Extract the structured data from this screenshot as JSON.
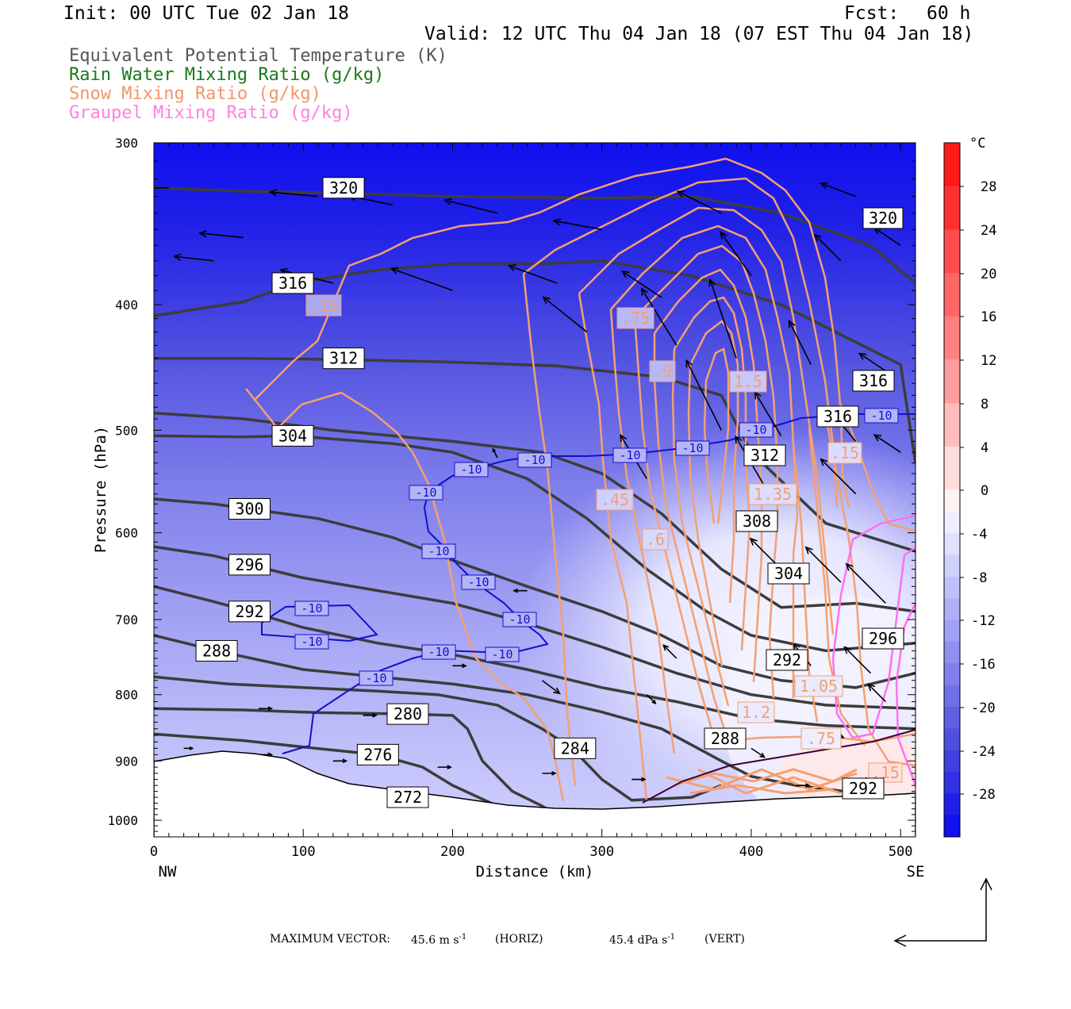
{
  "header": {
    "init": "Init: 00 UTC Tue 02 Jan 18",
    "fcst_label": "Fcst:",
    "fcst_value": "60 h",
    "valid": "Valid: 12 UTC Thu 04 Jan 18 (07 EST Thu 04 Jan 18)"
  },
  "legend": [
    {
      "label": "Equivalent Potential Temperature (K)",
      "color": "#555555"
    },
    {
      "label": "Rain Water Mixing Ratio (g/kg)",
      "color": "#1a7a1a"
    },
    {
      "label": "Snow Mixing Ratio (g/kg)",
      "color": "#f0966a"
    },
    {
      "label": "Graupel Mixing Ratio (g/kg)",
      "color": "#ff80e0"
    }
  ],
  "colors": {
    "theta_e": "#3c3c3c",
    "snow": "#f4a070",
    "graupel": "#ff70f0",
    "isotherm": "#1010d0",
    "vector": "#000000"
  },
  "chart_data": {
    "type": "contour",
    "x_axis": {
      "label": "Distance (km)",
      "range": [
        0,
        510
      ],
      "ticks": [
        "0",
        "100",
        "200",
        "300",
        "400",
        "500"
      ],
      "ends": [
        "NW",
        "SE"
      ]
    },
    "y_axis": {
      "label": "Pressure (hPa)",
      "range": [
        300,
        1030
      ],
      "log_scale": true,
      "ticks": [
        "300",
        "400",
        "500",
        "600",
        "700",
        "800",
        "900",
        "1000"
      ]
    },
    "colorbar": {
      "unit": "°C",
      "ticks": [
        "28",
        "24",
        "20",
        "16",
        "12",
        "8",
        "4",
        "0",
        "-4",
        "-8",
        "-12",
        "-16",
        "-20",
        "-24",
        "-28"
      ],
      "bins": [
        {
          "lo": 28,
          "hi": 32,
          "color": "#ff1a1a"
        },
        {
          "lo": 24,
          "hi": 28,
          "color": "#ff3030"
        },
        {
          "lo": 20,
          "hi": 24,
          "color": "#ff4c4c"
        },
        {
          "lo": 16,
          "hi": 20,
          "color": "#ff6666"
        },
        {
          "lo": 12,
          "hi": 16,
          "color": "#ff8080"
        },
        {
          "lo": 8,
          "hi": 12,
          "color": "#ff9c9c"
        },
        {
          "lo": 4,
          "hi": 8,
          "color": "#ffbcbc"
        },
        {
          "lo": 0,
          "hi": 4,
          "color": "#ffdcdc"
        },
        {
          "lo": -2,
          "hi": 0,
          "color": "#fff2f2"
        },
        {
          "lo": -4,
          "hi": -2,
          "color": "#eeeeff"
        },
        {
          "lo": -6,
          "hi": -4,
          "color": "#e0e0ff"
        },
        {
          "lo": -8,
          "hi": -6,
          "color": "#d0d0fd"
        },
        {
          "lo": -10,
          "hi": -8,
          "color": "#c0c0fb"
        },
        {
          "lo": -12,
          "hi": -10,
          "color": "#b0b0f8"
        },
        {
          "lo": -14,
          "hi": -12,
          "color": "#a0a0f4"
        },
        {
          "lo": -16,
          "hi": -14,
          "color": "#9090f0"
        },
        {
          "lo": -18,
          "hi": -16,
          "color": "#8080ec"
        },
        {
          "lo": -20,
          "hi": -18,
          "color": "#7070e8"
        },
        {
          "lo": -22,
          "hi": -20,
          "color": "#6060e4"
        },
        {
          "lo": -24,
          "hi": -22,
          "color": "#5050e0"
        },
        {
          "lo": -26,
          "hi": -24,
          "color": "#4040e0"
        },
        {
          "lo": -28,
          "hi": -26,
          "color": "#3030e4"
        },
        {
          "lo": -30,
          "hi": -28,
          "color": "#2020e8"
        },
        {
          "lo": -32,
          "hi": -30,
          "color": "#1010f0"
        }
      ]
    },
    "theta_e_contours": [
      {
        "label": "320",
        "points": [
          [
            0,
            325
          ],
          [
            60,
            327
          ],
          [
            120,
            328
          ],
          [
            200,
            330
          ],
          [
            300,
            331
          ],
          [
            360,
            330
          ],
          [
            420,
            340
          ],
          [
            480,
            360
          ],
          [
            510,
            385
          ]
        ],
        "label_at": [
          127,
          325
        ]
      },
      {
        "label": "316",
        "points": [
          [
            0,
            408
          ],
          [
            60,
            398
          ],
          [
            95,
            385
          ],
          [
            150,
            376
          ],
          [
            200,
            372
          ],
          [
            260,
            372
          ],
          [
            300,
            370
          ],
          [
            360,
            380
          ],
          [
            420,
            400
          ],
          [
            500,
            445
          ],
          [
            510,
            530
          ]
        ],
        "label_at": [
          93,
          385
        ]
      },
      {
        "label": "312",
        "points": [
          [
            0,
            440
          ],
          [
            60,
            440
          ],
          [
            127,
            441
          ],
          [
            200,
            443
          ],
          [
            270,
            446
          ],
          [
            340,
            455
          ],
          [
            380,
            470
          ],
          [
            400,
            520
          ],
          [
            450,
            590
          ],
          [
            510,
            620
          ]
        ],
        "label_at": [
          127,
          440
        ]
      },
      {
        "label": "308",
        "points": [
          [
            0,
            485
          ],
          [
            60,
            490
          ],
          [
            120,
            500
          ],
          [
            200,
            510
          ],
          [
            260,
            520
          ],
          [
            300,
            540
          ],
          [
            340,
            580
          ],
          [
            380,
            640
          ],
          [
            420,
            685
          ],
          [
            470,
            680
          ],
          [
            510,
            690
          ]
        ],
        "label_at": null
      },
      {
        "label": "304",
        "points": [
          [
            0,
            505
          ],
          [
            60,
            506
          ],
          [
            93,
            505
          ],
          [
            160,
            512
          ],
          [
            200,
            520
          ],
          [
            250,
            545
          ],
          [
            290,
            585
          ],
          [
            330,
            640
          ],
          [
            370,
            690
          ],
          [
            400,
            720
          ],
          [
            450,
            740
          ],
          [
            510,
            730
          ]
        ],
        "label_at": [
          93,
          505
        ]
      },
      {
        "label": "300",
        "points": [
          [
            0,
            565
          ],
          [
            40,
            570
          ],
          [
            64,
            575
          ],
          [
            110,
            585
          ],
          [
            160,
            605
          ],
          [
            200,
            630
          ],
          [
            250,
            660
          ],
          [
            300,
            690
          ],
          [
            340,
            720
          ],
          [
            380,
            760
          ],
          [
            420,
            780
          ],
          [
            470,
            790
          ],
          [
            510,
            770
          ]
        ],
        "label_at": [
          64,
          575
        ]
      },
      {
        "label": "296",
        "points": [
          [
            0,
            615
          ],
          [
            40,
            625
          ],
          [
            64,
            635
          ],
          [
            100,
            650
          ],
          [
            150,
            665
          ],
          [
            200,
            680
          ],
          [
            250,
            705
          ],
          [
            300,
            735
          ],
          [
            350,
            770
          ],
          [
            400,
            800
          ],
          [
            450,
            815
          ],
          [
            510,
            820
          ]
        ],
        "label_at": [
          64,
          635
        ]
      },
      {
        "label": "292",
        "points": [
          [
            0,
            660
          ],
          [
            40,
            678
          ],
          [
            64,
            690
          ],
          [
            100,
            710
          ],
          [
            150,
            730
          ],
          [
            200,
            745
          ],
          [
            250,
            765
          ],
          [
            300,
            790
          ],
          [
            350,
            810
          ],
          [
            400,
            835
          ],
          [
            450,
            845
          ],
          [
            510,
            850
          ]
        ],
        "label_at": [
          64,
          690
        ]
      },
      {
        "label": "288",
        "points": [
          [
            0,
            720
          ],
          [
            42,
            740
          ],
          [
            100,
            765
          ],
          [
            150,
            775
          ],
          [
            200,
            785
          ],
          [
            250,
            800
          ],
          [
            300,
            825
          ],
          [
            340,
            850
          ],
          [
            380,
            900
          ],
          [
            400,
            925
          ],
          [
            430,
            940
          ],
          [
            510,
            965
          ]
        ],
        "label_at": [
          42,
          740
        ]
      },
      {
        "label": "284",
        "points": [
          [
            0,
            775
          ],
          [
            50,
            785
          ],
          [
            100,
            790
          ],
          [
            150,
            795
          ],
          [
            190,
            800
          ],
          [
            230,
            815
          ],
          [
            260,
            850
          ],
          [
            280,
            880
          ],
          [
            300,
            930
          ],
          [
            320,
            965
          ],
          [
            360,
            960
          ],
          [
            380,
            940
          ]
        ],
        "label_at": [
          282,
          880
        ]
      },
      {
        "label": "280",
        "points": [
          [
            0,
            820
          ],
          [
            60,
            822
          ],
          [
            110,
            826
          ],
          [
            170,
            828
          ],
          [
            200,
            830
          ],
          [
            210,
            850
          ],
          [
            220,
            900
          ],
          [
            240,
            950
          ],
          [
            260,
            975
          ],
          [
            275,
            1000
          ]
        ],
        "label_at": [
          170,
          828
        ]
      },
      {
        "label": "276",
        "points": [
          [
            0,
            858
          ],
          [
            60,
            868
          ],
          [
            100,
            878
          ],
          [
            150,
            890
          ],
          [
            180,
            910
          ],
          [
            200,
            940
          ],
          [
            230,
            975
          ],
          [
            270,
            1000
          ]
        ],
        "label_at": [
          150,
          890
        ]
      },
      {
        "label": "272",
        "points": [
          [
            0,
            920
          ],
          [
            40,
            915
          ],
          [
            80,
            920
          ],
          [
            120,
            935
          ],
          [
            170,
            960
          ],
          [
            200,
            985
          ]
        ],
        "label_at": [
          170,
          960
        ]
      }
    ],
    "isotherm_labels": [
      "-10",
      "-10",
      "-10",
      "-10",
      "-10",
      "-10",
      "-10",
      "-10",
      "-10",
      "-10",
      "-10",
      "-10",
      "-10",
      "-10",
      "-10"
    ],
    "snow_labels": [
      ".15",
      ".75",
      ".9",
      "1.5",
      ".45",
      ".6",
      "1.35",
      "1.2",
      "1.05",
      ".75",
      ".15",
      ".15"
    ],
    "extra_theta_labels": [
      "320",
      "316",
      "316",
      "312",
      "308",
      "304",
      "296",
      "292",
      "288",
      "292"
    ],
    "wind_vectors": [
      [
        10,
        325,
        -12,
        0
      ],
      [
        60,
        355,
        -10,
        1
      ],
      [
        110,
        330,
        -11,
        1
      ],
      [
        160,
        335,
        -10,
        2
      ],
      [
        230,
        340,
        -12,
        3
      ],
      [
        300,
        350,
        -11,
        2
      ],
      [
        380,
        340,
        -10,
        5
      ],
      [
        470,
        330,
        -8,
        3
      ],
      [
        40,
        370,
        -9,
        1
      ],
      [
        120,
        385,
        -12,
        3
      ],
      [
        200,
        390,
        -14,
        5
      ],
      [
        270,
        385,
        -11,
        4
      ],
      [
        340,
        395,
        -9,
        6
      ],
      [
        400,
        380,
        -7,
        10
      ],
      [
        460,
        370,
        -6,
        6
      ],
      [
        500,
        360,
        -6,
        4
      ],
      [
        290,
        420,
        -10,
        8
      ],
      [
        350,
        430,
        -8,
        13
      ],
      [
        390,
        440,
        -6,
        18
      ],
      [
        440,
        445,
        -5,
        10
      ],
      [
        490,
        450,
        -6,
        4
      ],
      [
        380,
        500,
        -8,
        16
      ],
      [
        420,
        505,
        -6,
        10
      ],
      [
        470,
        510,
        -5,
        6
      ],
      [
        500,
        520,
        -6,
        4
      ],
      [
        230,
        525,
        -1,
        2
      ],
      [
        330,
        545,
        -6,
        10
      ],
      [
        410,
        555,
        -7,
        12
      ],
      [
        470,
        560,
        -8,
        8
      ],
      [
        420,
        640,
        -7,
        7
      ],
      [
        460,
        655,
        -8,
        8
      ],
      [
        490,
        680,
        -9,
        9
      ],
      [
        350,
        750,
        -3,
        3
      ],
      [
        440,
        760,
        -4,
        5
      ],
      [
        480,
        770,
        -6,
        6
      ],
      [
        490,
        810,
        -4,
        4
      ],
      [
        250,
        665,
        -3,
        0
      ],
      [
        200,
        760,
        3,
        0
      ],
      [
        260,
        780,
        4,
        -3
      ],
      [
        330,
        800,
        2,
        -2
      ],
      [
        400,
        880,
        3,
        -2
      ],
      [
        450,
        850,
        4,
        -2
      ],
      [
        70,
        820,
        3,
        0
      ],
      [
        140,
        830,
        3,
        0
      ],
      [
        20,
        880,
        2,
        0
      ],
      [
        70,
        890,
        3,
        0
      ],
      [
        120,
        900,
        3,
        0
      ],
      [
        190,
        910,
        3,
        0
      ],
      [
        260,
        920,
        3,
        0
      ],
      [
        320,
        930,
        3,
        0
      ],
      [
        430,
        940,
        3,
        0
      ],
      [
        470,
        930,
        3,
        0
      ],
      [
        50,
        940,
        2,
        0
      ],
      [
        140,
        960,
        2,
        0
      ],
      [
        200,
        980,
        3,
        0
      ],
      [
        260,
        990,
        3,
        0
      ],
      [
        360,
        990,
        3,
        0
      ],
      [
        420,
        990,
        3,
        0
      ],
      [
        470,
        990,
        3,
        0
      ]
    ]
  },
  "footer": {
    "max_vector_label": "MAXIMUM VECTOR:",
    "horiz_value": "45.6 m s",
    "horiz_unit": "(HORIZ)",
    "vert_value": "45.4 dPa s",
    "vert_unit": "(VERT)",
    "exponent": "-1"
  }
}
